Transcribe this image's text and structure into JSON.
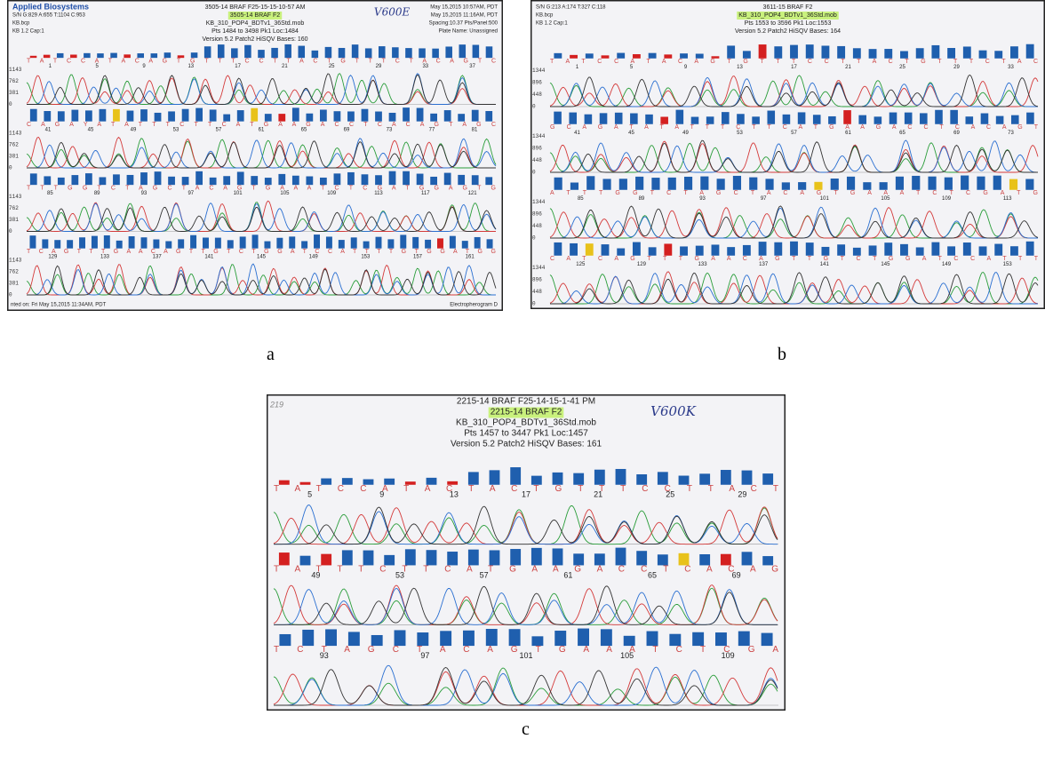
{
  "figure": {
    "panels": [
      {
        "label": "a",
        "header": [
          "3505-14 BRAF F25-15-15-10-57 AM",
          "3505-14 BRAF F2",
          "KB_310_POP4_BDTv1_36Std.mob",
          "Pts 1484 to 3498 Pk1 Loc:1484",
          "Version 5.2 Patch2   HiSQV Bases: 160"
        ],
        "left_info": [
          "Applied Biosystems",
          "S/N G:829 A:655 T:1104 C:953",
          "KB.bcp",
          "KB 1.2   Cap:1"
        ],
        "right_info": [
          "May 15,2015 10:57AM, PDT",
          "May 15,2015 11:16AM, PDT",
          "Spacing:10.37  Pts/Panel:500",
          "Plate Name: Unassigned"
        ],
        "note": "V600E",
        "y_axis": [
          "1143",
          "762",
          "381",
          "0"
        ],
        "rows": [
          {
            "bases": "T A T C C A T A C A G T G T T T C C T T A C T G T T T C T A C A G T C",
            "positions": [
              1,
              5,
              9,
              13,
              17,
              21,
              25,
              29,
              33,
              37
            ]
          },
          {
            "bases": "C A G A Y A T A T T T C T T C A T G A A G A C C T C A C A G T A G C",
            "positions": [
              41,
              45,
              49,
              53,
              57,
              61,
              65,
              69,
              73,
              77,
              81
            ]
          },
          {
            "bases": "T T T G G T C T A G C T A C A G T G A A A T C T C G A T G G A G T G",
            "positions": [
              85,
              89,
              93,
              97,
              101,
              105,
              109,
              113,
              117,
              121
            ]
          },
          {
            "bases": "T C A G T T T G A A C A G T T G T C T G G A T C C A T T T T G T G G A T G G",
            "positions": [
              129,
              133,
              137,
              141,
              145,
              149,
              153,
              157,
              161
            ]
          }
        ],
        "footer_left": "nted on: Fri May 15,2015 11:34AM, PDT",
        "footer_right": "Electropherogram D"
      },
      {
        "label": "b",
        "header": [
          "3611-15 BRAF F2",
          "KB_310_POP4_BDTv1_36Std.mob",
          "Pts 1553 to 3596 Pk1 Loc:1553",
          "Version 5.2 Patch2   HiSQV Bases: 164"
        ],
        "left_info": [
          "S/N G:213 A:174 T:327 C:118",
          "KB.bcp",
          "KB 1.2   Cap:1"
        ],
        "y_axis": [
          "1344",
          "896",
          "448",
          "0"
        ],
        "rows": [
          {
            "bases": "T A T C C A T A C A G T G T T T C C T T A C T G T T T C T A C",
            "positions": [
              1,
              5,
              9,
              13,
              17,
              21,
              25,
              29,
              33
            ]
          },
          {
            "bases": "G C A G A T A T A T T T C T T C A T G A A G A C C T C A C A G T",
            "positions": [
              41,
              45,
              49,
              53,
              57,
              61,
              65,
              69,
              73
            ]
          },
          {
            "bases": "A T T T G G T C T A G C T A C A G T G A A A T C T C G A T G",
            "positions": [
              85,
              89,
              93,
              97,
              101,
              105,
              109,
              113
            ]
          },
          {
            "bases": "C A T C A G T T T G A A C A G T T G T C T G G A T C C A T T T",
            "positions": [
              125,
              129,
              133,
              137,
              141,
              145,
              149,
              153
            ]
          }
        ]
      },
      {
        "label": "c",
        "header": [
          "2215-14 BRAF F25-14-15-1-41 PM",
          "2215-14 BRAF F2",
          "KB_310_POP4_BDTv1_36Std.mob",
          "Pts 1457 to 3447 Pk1 Loc:1457",
          "Version 5.2 Patch2   HiSQV Bases: 161"
        ],
        "corner": "219",
        "note": "V600K",
        "rows": [
          {
            "bases": "T A T C C A T A C T A C T G T T T C C T T A C T",
            "positions": [
              5,
              9,
              13,
              17,
              21,
              25,
              29
            ]
          },
          {
            "bases": "T A T T T C T T C A T G A A G A C C T C A C A G",
            "positions": [
              49,
              53,
              57,
              61,
              65,
              69
            ]
          },
          {
            "bases": "T C T A G C T A C A G T G A A A T C T C G A",
            "positions": [
              93,
              97,
              101,
              105,
              109
            ]
          }
        ]
      }
    ]
  }
}
